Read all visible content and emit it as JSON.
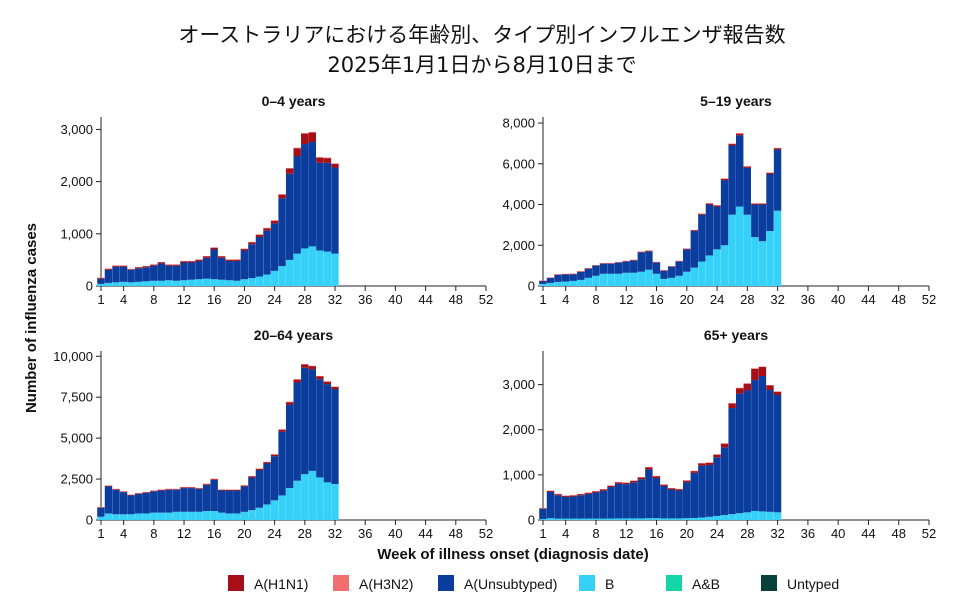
{
  "title": {
    "line1": "オーストラリアにおける年齢別、タイプ別インフルエンザ報告数",
    "line2": "2025年1月1日から8月10日まで"
  },
  "axes": {
    "xlabel": "Week of illness onset (diagnosis date)",
    "ylabel": "Number of influenza cases",
    "x_ticks": [
      1,
      4,
      8,
      12,
      16,
      20,
      24,
      28,
      32,
      36,
      40,
      44,
      48,
      52
    ]
  },
  "legend": [
    {
      "name": "A(H1N1)",
      "color": "#a50f15"
    },
    {
      "name": "A(H3N2)",
      "color": "#f26d6d"
    },
    {
      "name": "A(Unsubtyped)",
      "color": "#0a3d9e"
    },
    {
      "name": "B",
      "color": "#36d1f8"
    },
    {
      "name": "A&B",
      "color": "#12d6a8"
    },
    {
      "name": "Untyped",
      "color": "#08403b"
    }
  ],
  "chart_data": [
    {
      "type": "bar",
      "stacked": true,
      "title": "0–4 years",
      "xlim": [
        1,
        52
      ],
      "ylim": [
        0,
        3200
      ],
      "y_ticks": [
        0,
        1000,
        2000,
        3000
      ],
      "y_tick_labels": [
        "0",
        "1,000",
        "2,000",
        "3,000"
      ],
      "weeks": [
        1,
        2,
        3,
        4,
        5,
        6,
        7,
        8,
        9,
        10,
        11,
        12,
        13,
        14,
        15,
        16,
        17,
        18,
        19,
        20,
        21,
        22,
        23,
        24,
        25,
        26,
        27,
        28,
        29,
        30,
        31,
        32
      ],
      "series": [
        {
          "name": "B",
          "values": [
            40,
            60,
            70,
            80,
            70,
            80,
            90,
            100,
            100,
            110,
            100,
            110,
            120,
            130,
            140,
            130,
            120,
            110,
            100,
            130,
            150,
            180,
            220,
            290,
            380,
            500,
            620,
            720,
            760,
            680,
            660,
            620
          ]
        },
        {
          "name": "A(Unsubtyped)",
          "values": [
            100,
            250,
            300,
            290,
            240,
            260,
            270,
            290,
            330,
            280,
            290,
            340,
            330,
            350,
            400,
            570,
            420,
            370,
            380,
            550,
            650,
            760,
            840,
            910,
            1300,
            1650,
            1870,
            2000,
            2000,
            1680,
            1700,
            1650
          ]
        },
        {
          "name": "A(H1N1)",
          "values": [
            15,
            20,
            20,
            20,
            15,
            20,
            20,
            20,
            25,
            20,
            20,
            25,
            25,
            25,
            30,
            35,
            30,
            25,
            25,
            30,
            35,
            40,
            45,
            50,
            70,
            100,
            150,
            200,
            180,
            100,
            90,
            70
          ]
        },
        {
          "name": "A(H3N2)",
          "values": [
            5,
            5,
            5,
            5,
            5,
            5,
            5,
            5,
            5,
            5,
            5,
            5,
            5,
            5,
            5,
            5,
            5,
            5,
            5,
            5,
            10,
            10,
            10,
            10,
            10,
            10,
            10,
            10,
            10,
            10,
            10,
            10
          ]
        }
      ]
    },
    {
      "type": "bar",
      "stacked": true,
      "title": "5–19 years",
      "xlim": [
        1,
        52
      ],
      "ylim": [
        0,
        8200
      ],
      "y_ticks": [
        0,
        2000,
        4000,
        6000,
        8000
      ],
      "y_tick_labels": [
        "0",
        "2,000",
        "4,000",
        "6,000",
        "8,000"
      ],
      "weeks": [
        1,
        2,
        3,
        4,
        5,
        6,
        7,
        8,
        9,
        10,
        11,
        12,
        13,
        14,
        15,
        16,
        17,
        18,
        19,
        20,
        21,
        22,
        23,
        24,
        25,
        26,
        27,
        28,
        29,
        30,
        31,
        32
      ],
      "series": [
        {
          "name": "B",
          "values": [
            100,
            150,
            200,
            220,
            250,
            300,
            400,
            500,
            600,
            600,
            600,
            650,
            650,
            700,
            800,
            600,
            350,
            400,
            500,
            700,
            900,
            1200,
            1500,
            1800,
            2000,
            3500,
            3900,
            3500,
            2400,
            2200,
            2700,
            3700
          ]
        },
        {
          "name": "A(Unsubtyped)",
          "values": [
            150,
            250,
            350,
            350,
            330,
            400,
            450,
            500,
            500,
            500,
            550,
            550,
            600,
            950,
            900,
            550,
            400,
            550,
            700,
            1100,
            1800,
            2300,
            2500,
            2100,
            3200,
            3400,
            3500,
            2300,
            1600,
            1800,
            2800,
            3000
          ]
        },
        {
          "name": "A(H1N1)",
          "values": [
            10,
            15,
            20,
            20,
            20,
            20,
            25,
            25,
            25,
            25,
            25,
            30,
            30,
            35,
            40,
            30,
            25,
            25,
            30,
            40,
            45,
            50,
            55,
            60,
            70,
            80,
            90,
            70,
            50,
            50,
            60,
            70
          ]
        },
        {
          "name": "A(H3N2)",
          "values": [
            5,
            5,
            5,
            5,
            5,
            5,
            5,
            5,
            5,
            5,
            5,
            5,
            5,
            5,
            5,
            5,
            5,
            5,
            5,
            5,
            10,
            10,
            10,
            10,
            10,
            10,
            10,
            10,
            10,
            10,
            10,
            10
          ]
        }
      ]
    },
    {
      "type": "bar",
      "stacked": true,
      "title": "20–64 years",
      "xlim": [
        1,
        52
      ],
      "ylim": [
        0,
        10200
      ],
      "y_ticks": [
        0,
        2500,
        5000,
        7500,
        10000
      ],
      "y_tick_labels": [
        "0",
        "2,500",
        "5,000",
        "7,500",
        "10,000"
      ],
      "weeks": [
        1,
        2,
        3,
        4,
        5,
        6,
        7,
        8,
        9,
        10,
        11,
        12,
        13,
        14,
        15,
        16,
        17,
        18,
        19,
        20,
        21,
        22,
        23,
        24,
        25,
        26,
        27,
        28,
        29,
        30,
        31,
        32
      ],
      "series": [
        {
          "name": "B",
          "values": [
            200,
            400,
            350,
            350,
            350,
            400,
            400,
            450,
            450,
            450,
            500,
            500,
            500,
            500,
            550,
            550,
            450,
            400,
            400,
            500,
            600,
            750,
            950,
            1200,
            1500,
            1950,
            2400,
            2800,
            3000,
            2600,
            2300,
            2200
          ]
        },
        {
          "name": "A(Unsubtyped)",
          "values": [
            550,
            1650,
            1500,
            1350,
            1150,
            1200,
            1250,
            1300,
            1350,
            1400,
            1350,
            1450,
            1450,
            1400,
            1600,
            1900,
            1350,
            1400,
            1400,
            1550,
            2000,
            2300,
            2500,
            2700,
            3900,
            5100,
            6000,
            6500,
            6200,
            6000,
            6000,
            5800
          ]
        },
        {
          "name": "A(H1N1)",
          "values": [
            30,
            50,
            45,
            45,
            40,
            40,
            45,
            45,
            45,
            45,
            45,
            50,
            50,
            50,
            55,
            60,
            50,
            50,
            50,
            60,
            70,
            80,
            90,
            100,
            120,
            150,
            180,
            200,
            200,
            180,
            150,
            130
          ]
        },
        {
          "name": "A(H3N2)",
          "values": [
            10,
            10,
            10,
            10,
            10,
            10,
            10,
            10,
            10,
            10,
            10,
            10,
            10,
            10,
            10,
            10,
            10,
            10,
            10,
            10,
            15,
            15,
            15,
            15,
            20,
            20,
            20,
            20,
            20,
            20,
            20,
            20
          ]
        }
      ]
    },
    {
      "type": "bar",
      "stacked": true,
      "title": "65+ years",
      "xlim": [
        1,
        52
      ],
      "ylim": [
        0,
        3700
      ],
      "y_ticks": [
        0,
        1000,
        2000,
        3000
      ],
      "y_tick_labels": [
        "0",
        "1,000",
        "2,000",
        "3,000"
      ],
      "weeks": [
        1,
        2,
        3,
        4,
        5,
        6,
        7,
        8,
        9,
        10,
        11,
        12,
        13,
        14,
        15,
        16,
        17,
        18,
        19,
        20,
        21,
        22,
        23,
        24,
        25,
        26,
        27,
        28,
        29,
        30,
        31,
        32
      ],
      "series": [
        {
          "name": "B",
          "values": [
            20,
            40,
            30,
            30,
            30,
            30,
            30,
            30,
            30,
            30,
            35,
            35,
            35,
            35,
            40,
            40,
            35,
            35,
            35,
            40,
            45,
            55,
            70,
            90,
            110,
            130,
            150,
            170,
            200,
            190,
            180,
            170
          ]
        },
        {
          "name": "A(Unsubtyped)",
          "values": [
            230,
            580,
            520,
            480,
            490,
            520,
            550,
            580,
            620,
            700,
            770,
            760,
            800,
            870,
            1080,
            890,
            720,
            640,
            620,
            800,
            1000,
            1150,
            1150,
            1300,
            1500,
            2350,
            2650,
            2700,
            2900,
            3000,
            2700,
            2600
          ]
        },
        {
          "name": "A(H1N1)",
          "values": [
            10,
            25,
            25,
            25,
            25,
            25,
            25,
            25,
            30,
            30,
            30,
            30,
            35,
            40,
            50,
            40,
            30,
            30,
            30,
            35,
            40,
            50,
            50,
            60,
            80,
            100,
            120,
            150,
            250,
            200,
            100,
            70
          ]
        },
        {
          "name": "A(H3N2)",
          "values": [
            5,
            5,
            5,
            5,
            5,
            5,
            5,
            5,
            5,
            5,
            5,
            5,
            5,
            5,
            5,
            5,
            5,
            5,
            5,
            5,
            5,
            5,
            5,
            5,
            10,
            10,
            10,
            10,
            10,
            10,
            10,
            10
          ]
        }
      ]
    }
  ]
}
